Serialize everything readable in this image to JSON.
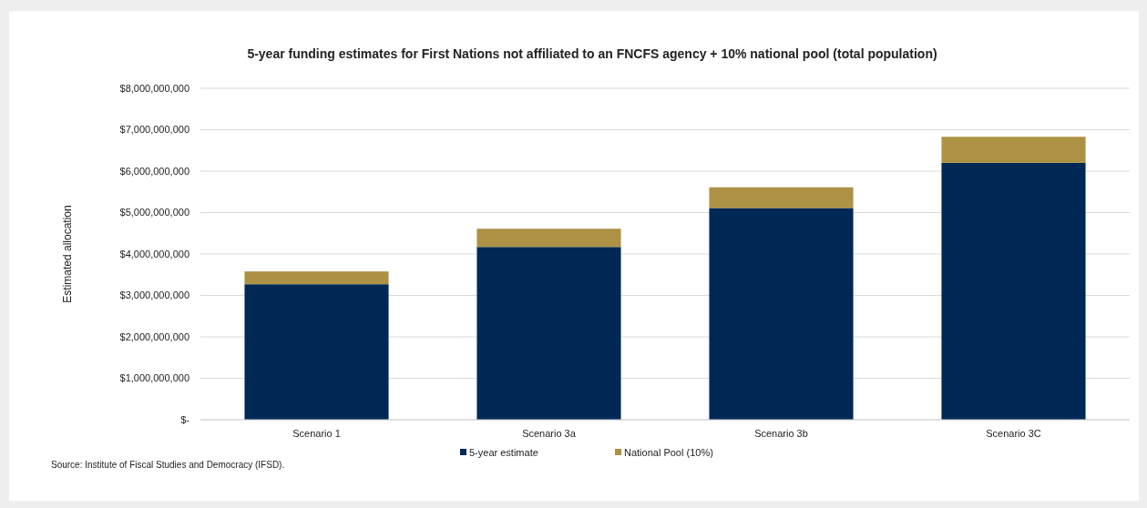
{
  "chart_data": {
    "type": "bar",
    "title": "5-year funding estimates for First Nations not affiliated to an FNCFS agency + 10% national pool (total population)",
    "ylabel": "Estimated allocation",
    "categories": [
      "Scenario 1",
      "Scenario 3a",
      "Scenario 3b",
      "Scenario 3C"
    ],
    "stacked": true,
    "series": [
      {
        "name": "5-year estimate",
        "color": "#002855",
        "values": [
          3270000000,
          4170000000,
          5110000000,
          6200000000
        ]
      },
      {
        "name": "National Pool (10%)",
        "color": "#ad9144",
        "values": [
          310000000,
          440000000,
          500000000,
          630000000
        ]
      }
    ],
    "ylim": [
      0,
      8000000000
    ],
    "yticks": [
      {
        "value": 0,
        "label": "$-"
      },
      {
        "value": 1000000000,
        "label": "$1,000,000,000"
      },
      {
        "value": 2000000000,
        "label": "$2,000,000,000"
      },
      {
        "value": 3000000000,
        "label": "$3,000,000,000"
      },
      {
        "value": 4000000000,
        "label": "$4,000,000,000"
      },
      {
        "value": 5000000000,
        "label": "$5,000,000,000"
      },
      {
        "value": 6000000000,
        "label": "$6,000,000,000"
      },
      {
        "value": 7000000000,
        "label": "$7,000,000,000"
      },
      {
        "value": 8000000000,
        "label": "$8,000,000,000"
      }
    ],
    "grid": "y",
    "legend": "bottom",
    "annotations": [
      "Source: Institute  of Fiscal Studies and Democracy (IFSD)."
    ]
  }
}
